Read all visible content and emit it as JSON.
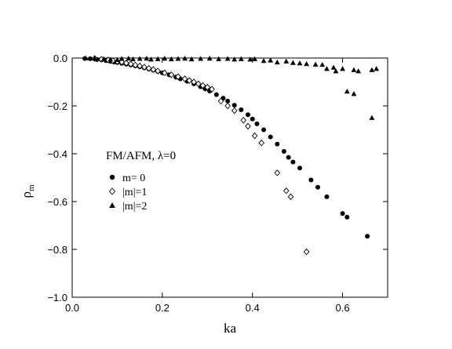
{
  "chart_data": {
    "type": "scatter",
    "xlabel": "ka",
    "ylabel": "ρ",
    "ylabel_sub": "m",
    "xlim": [
      0.0,
      0.7
    ],
    "ylim": [
      -1.0,
      0.0
    ],
    "xticks": [
      0.0,
      0.2,
      0.4,
      0.6
    ],
    "xtick_labels": [
      "0.0",
      "0.2",
      "0.4",
      "0.6"
    ],
    "yticks": [
      0.0,
      -0.2,
      -0.4,
      -0.6,
      -0.8,
      -1.0
    ],
    "ytick_labels": [
      "0.0",
      "−0.2",
      "−0.4",
      "−0.6",
      "−0.8",
      "−1.0"
    ],
    "grid": false,
    "annotation": "FM/AFM, λ=0",
    "legend_position": "middle-left",
    "series": [
      {
        "name": "m= 0",
        "marker": "filled-circle",
        "points": [
          [
            0.028,
            -0.002
          ],
          [
            0.04,
            -0.003
          ],
          [
            0.055,
            -0.006
          ],
          [
            0.065,
            -0.008
          ],
          [
            0.075,
            -0.011
          ],
          [
            0.085,
            -0.014
          ],
          [
            0.093,
            -0.017
          ],
          [
            0.1,
            -0.019
          ],
          [
            0.11,
            -0.022
          ],
          [
            0.12,
            -0.026
          ],
          [
            0.13,
            -0.029
          ],
          [
            0.14,
            -0.033
          ],
          [
            0.15,
            -0.037
          ],
          [
            0.16,
            -0.041
          ],
          [
            0.17,
            -0.046
          ],
          [
            0.18,
            -0.051
          ],
          [
            0.19,
            -0.056
          ],
          [
            0.2,
            -0.062
          ],
          [
            0.215,
            -0.07
          ],
          [
            0.23,
            -0.08
          ],
          [
            0.24,
            -0.087
          ],
          [
            0.255,
            -0.097
          ],
          [
            0.27,
            -0.108
          ],
          [
            0.285,
            -0.12
          ],
          [
            0.295,
            -0.129
          ],
          [
            0.305,
            -0.138
          ],
          [
            0.32,
            -0.153
          ],
          [
            0.335,
            -0.168
          ],
          [
            0.345,
            -0.18
          ],
          [
            0.36,
            -0.197
          ],
          [
            0.375,
            -0.216
          ],
          [
            0.39,
            -0.237
          ],
          [
            0.4,
            -0.255
          ],
          [
            0.41,
            -0.275
          ],
          [
            0.425,
            -0.3
          ],
          [
            0.44,
            -0.33
          ],
          [
            0.455,
            -0.36
          ],
          [
            0.47,
            -0.39
          ],
          [
            0.48,
            -0.415
          ],
          [
            0.49,
            -0.435
          ],
          [
            0.505,
            -0.46
          ],
          [
            0.53,
            -0.51
          ],
          [
            0.545,
            -0.54
          ],
          [
            0.565,
            -0.58
          ],
          [
            0.6,
            -0.65
          ],
          [
            0.61,
            -0.665
          ],
          [
            0.655,
            -0.745
          ]
        ]
      },
      {
        "name": "|m|=1",
        "marker": "open-diamond",
        "points": [
          [
            0.05,
            -0.002
          ],
          [
            0.065,
            -0.005
          ],
          [
            0.08,
            -0.008
          ],
          [
            0.09,
            -0.011
          ],
          [
            0.1,
            -0.014
          ],
          [
            0.11,
            -0.017
          ],
          [
            0.12,
            -0.021
          ],
          [
            0.13,
            -0.025
          ],
          [
            0.14,
            -0.029
          ],
          [
            0.15,
            -0.033
          ],
          [
            0.16,
            -0.038
          ],
          [
            0.17,
            -0.043
          ],
          [
            0.18,
            -0.048
          ],
          [
            0.19,
            -0.054
          ],
          [
            0.205,
            -0.062
          ],
          [
            0.22,
            -0.07
          ],
          [
            0.235,
            -0.078
          ],
          [
            0.25,
            -0.087
          ],
          [
            0.26,
            -0.094
          ],
          [
            0.27,
            -0.1
          ],
          [
            0.28,
            -0.108
          ],
          [
            0.29,
            -0.115
          ],
          [
            0.3,
            -0.122
          ],
          [
            0.31,
            -0.13
          ],
          [
            0.33,
            -0.18
          ],
          [
            0.345,
            -0.2
          ],
          [
            0.36,
            -0.22
          ],
          [
            0.38,
            -0.26
          ],
          [
            0.39,
            -0.285
          ],
          [
            0.405,
            -0.325
          ],
          [
            0.42,
            -0.355
          ],
          [
            0.455,
            -0.48
          ],
          [
            0.475,
            -0.555
          ],
          [
            0.485,
            -0.58
          ],
          [
            0.52,
            -0.81
          ]
        ]
      },
      {
        "name": "|m|=2",
        "marker": "filled-triangle",
        "points": [
          [
            0.03,
            -0.001
          ],
          [
            0.05,
            -0.002
          ],
          [
            0.07,
            -0.004
          ],
          [
            0.085,
            -0.006
          ],
          [
            0.1,
            -0.008
          ],
          [
            0.11,
            -0.003
          ],
          [
            0.125,
            -0.002
          ],
          [
            0.135,
            -0.005
          ],
          [
            0.15,
            -0.003
          ],
          [
            0.165,
            -0.002
          ],
          [
            0.175,
            -0.006
          ],
          [
            0.19,
            -0.004
          ],
          [
            0.205,
            -0.002
          ],
          [
            0.22,
            -0.005
          ],
          [
            0.235,
            -0.003
          ],
          [
            0.25,
            -0.002
          ],
          [
            0.265,
            -0.005
          ],
          [
            0.285,
            -0.003
          ],
          [
            0.305,
            -0.002
          ],
          [
            0.325,
            -0.004
          ],
          [
            0.345,
            -0.003
          ],
          [
            0.36,
            -0.006
          ],
          [
            0.375,
            -0.004
          ],
          [
            0.395,
            -0.006
          ],
          [
            0.405,
            -0.004
          ],
          [
            0.425,
            -0.012
          ],
          [
            0.44,
            -0.01
          ],
          [
            0.455,
            -0.018
          ],
          [
            0.475,
            -0.014
          ],
          [
            0.49,
            -0.02
          ],
          [
            0.505,
            -0.022
          ],
          [
            0.52,
            -0.025
          ],
          [
            0.54,
            -0.027
          ],
          [
            0.555,
            -0.028
          ],
          [
            0.565,
            -0.045
          ],
          [
            0.58,
            -0.04
          ],
          [
            0.585,
            -0.055
          ],
          [
            0.6,
            -0.045
          ],
          [
            0.625,
            -0.05
          ],
          [
            0.635,
            -0.055
          ],
          [
            0.61,
            -0.14
          ],
          [
            0.625,
            -0.15
          ],
          [
            0.665,
            -0.05
          ],
          [
            0.675,
            -0.045
          ],
          [
            0.665,
            -0.25
          ]
        ]
      }
    ]
  }
}
